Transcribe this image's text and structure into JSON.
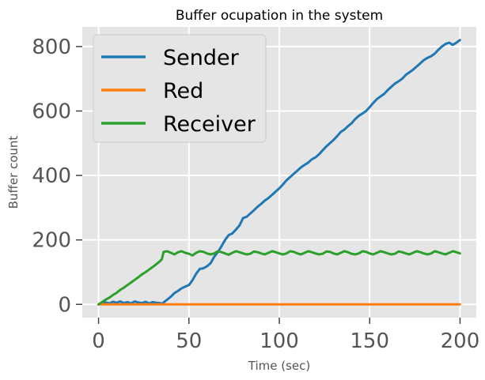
{
  "chart_data": {
    "type": "line",
    "title": "Buffer ocupation in the system",
    "xlabel": "Time (sec)",
    "ylabel": "Buffer count",
    "xlim": [
      -9,
      209
    ],
    "ylim": [
      -41,
      861
    ],
    "xticks": [
      0,
      50,
      100,
      150,
      200
    ],
    "yticks": [
      0,
      200,
      400,
      600,
      800
    ],
    "grid": true,
    "legend_position": "upper-left",
    "background": "#e5e5e5",
    "series": [
      {
        "name": "Sender",
        "color": "#1f77b4",
        "x": [
          0,
          2,
          4,
          6,
          8,
          10,
          12,
          14,
          16,
          18,
          20,
          22,
          24,
          26,
          28,
          30,
          32,
          34,
          35,
          36,
          38,
          40,
          42,
          44,
          46,
          48,
          50,
          52,
          54,
          56,
          58,
          60,
          62,
          64,
          66,
          68,
          70,
          72,
          74,
          76,
          78,
          80,
          82,
          84,
          86,
          88,
          90,
          92,
          94,
          96,
          98,
          100,
          102,
          104,
          106,
          108,
          110,
          112,
          114,
          116,
          118,
          120,
          122,
          124,
          126,
          128,
          130,
          132,
          134,
          136,
          138,
          140,
          142,
          144,
          146,
          148,
          150,
          152,
          154,
          156,
          158,
          160,
          162,
          164,
          166,
          168,
          170,
          172,
          174,
          176,
          178,
          180,
          182,
          184,
          186,
          188,
          190,
          192,
          194,
          196,
          198,
          200
        ],
        "values": [
          0,
          4,
          6,
          3,
          8,
          5,
          9,
          4,
          7,
          3,
          9,
          6,
          4,
          8,
          3,
          7,
          5,
          4,
          2,
          6,
          15,
          24,
          35,
          42,
          50,
          55,
          60,
          75,
          95,
          110,
          112,
          118,
          128,
          148,
          162,
          180,
          200,
          215,
          220,
          232,
          245,
          268,
          272,
          282,
          292,
          303,
          312,
          322,
          330,
          340,
          350,
          360,
          372,
          385,
          395,
          405,
          415,
          425,
          433,
          440,
          450,
          456,
          466,
          478,
          490,
          500,
          510,
          522,
          535,
          542,
          553,
          562,
          575,
          585,
          592,
          600,
          612,
          625,
          637,
          645,
          653,
          665,
          675,
          685,
          692,
          700,
          712,
          720,
          728,
          738,
          748,
          758,
          765,
          770,
          778,
          790,
          800,
          808,
          812,
          805,
          812,
          820
        ]
      },
      {
        "name": "Red",
        "color": "#ff7f0e",
        "x": [
          0,
          200
        ],
        "values": [
          0,
          0
        ]
      },
      {
        "name": "Receiver",
        "color": "#2ca02c",
        "x": [
          0,
          2,
          4,
          6,
          8,
          10,
          12,
          14,
          16,
          18,
          20,
          22,
          24,
          26,
          28,
          30,
          32,
          34,
          35,
          36,
          38,
          40,
          42,
          44,
          46,
          48,
          50,
          52,
          54,
          56,
          58,
          60,
          62,
          64,
          66,
          68,
          70,
          72,
          74,
          76,
          78,
          80,
          82,
          84,
          86,
          88,
          90,
          92,
          94,
          96,
          98,
          100,
          102,
          104,
          106,
          108,
          110,
          112,
          114,
          116,
          118,
          120,
          122,
          124,
          126,
          128,
          130,
          132,
          134,
          136,
          138,
          140,
          142,
          144,
          146,
          148,
          150,
          152,
          154,
          156,
          158,
          160,
          162,
          164,
          166,
          168,
          170,
          172,
          174,
          176,
          178,
          180,
          182,
          184,
          186,
          188,
          190,
          192,
          194,
          196,
          198,
          200
        ],
        "values": [
          0,
          7,
          15,
          21,
          29,
          36,
          45,
          52,
          60,
          68,
          76,
          84,
          93,
          100,
          108,
          116,
          125,
          134,
          140,
          163,
          165,
          160,
          155,
          162,
          165,
          160,
          157,
          152,
          160,
          165,
          163,
          158,
          155,
          158,
          165,
          162,
          158,
          154,
          160,
          165,
          162,
          158,
          155,
          157,
          164,
          162,
          158,
          155,
          160,
          165,
          162,
          158,
          155,
          158,
          165,
          163,
          158,
          155,
          160,
          165,
          162,
          158,
          155,
          157,
          164,
          163,
          158,
          155,
          160,
          165,
          162,
          157,
          155,
          158,
          165,
          163,
          158,
          155,
          160,
          165,
          162,
          158,
          155,
          157,
          164,
          162,
          158,
          155,
          160,
          165,
          162,
          158,
          155,
          158,
          165,
          162,
          158,
          155,
          160,
          165,
          162,
          158
        ]
      }
    ]
  }
}
